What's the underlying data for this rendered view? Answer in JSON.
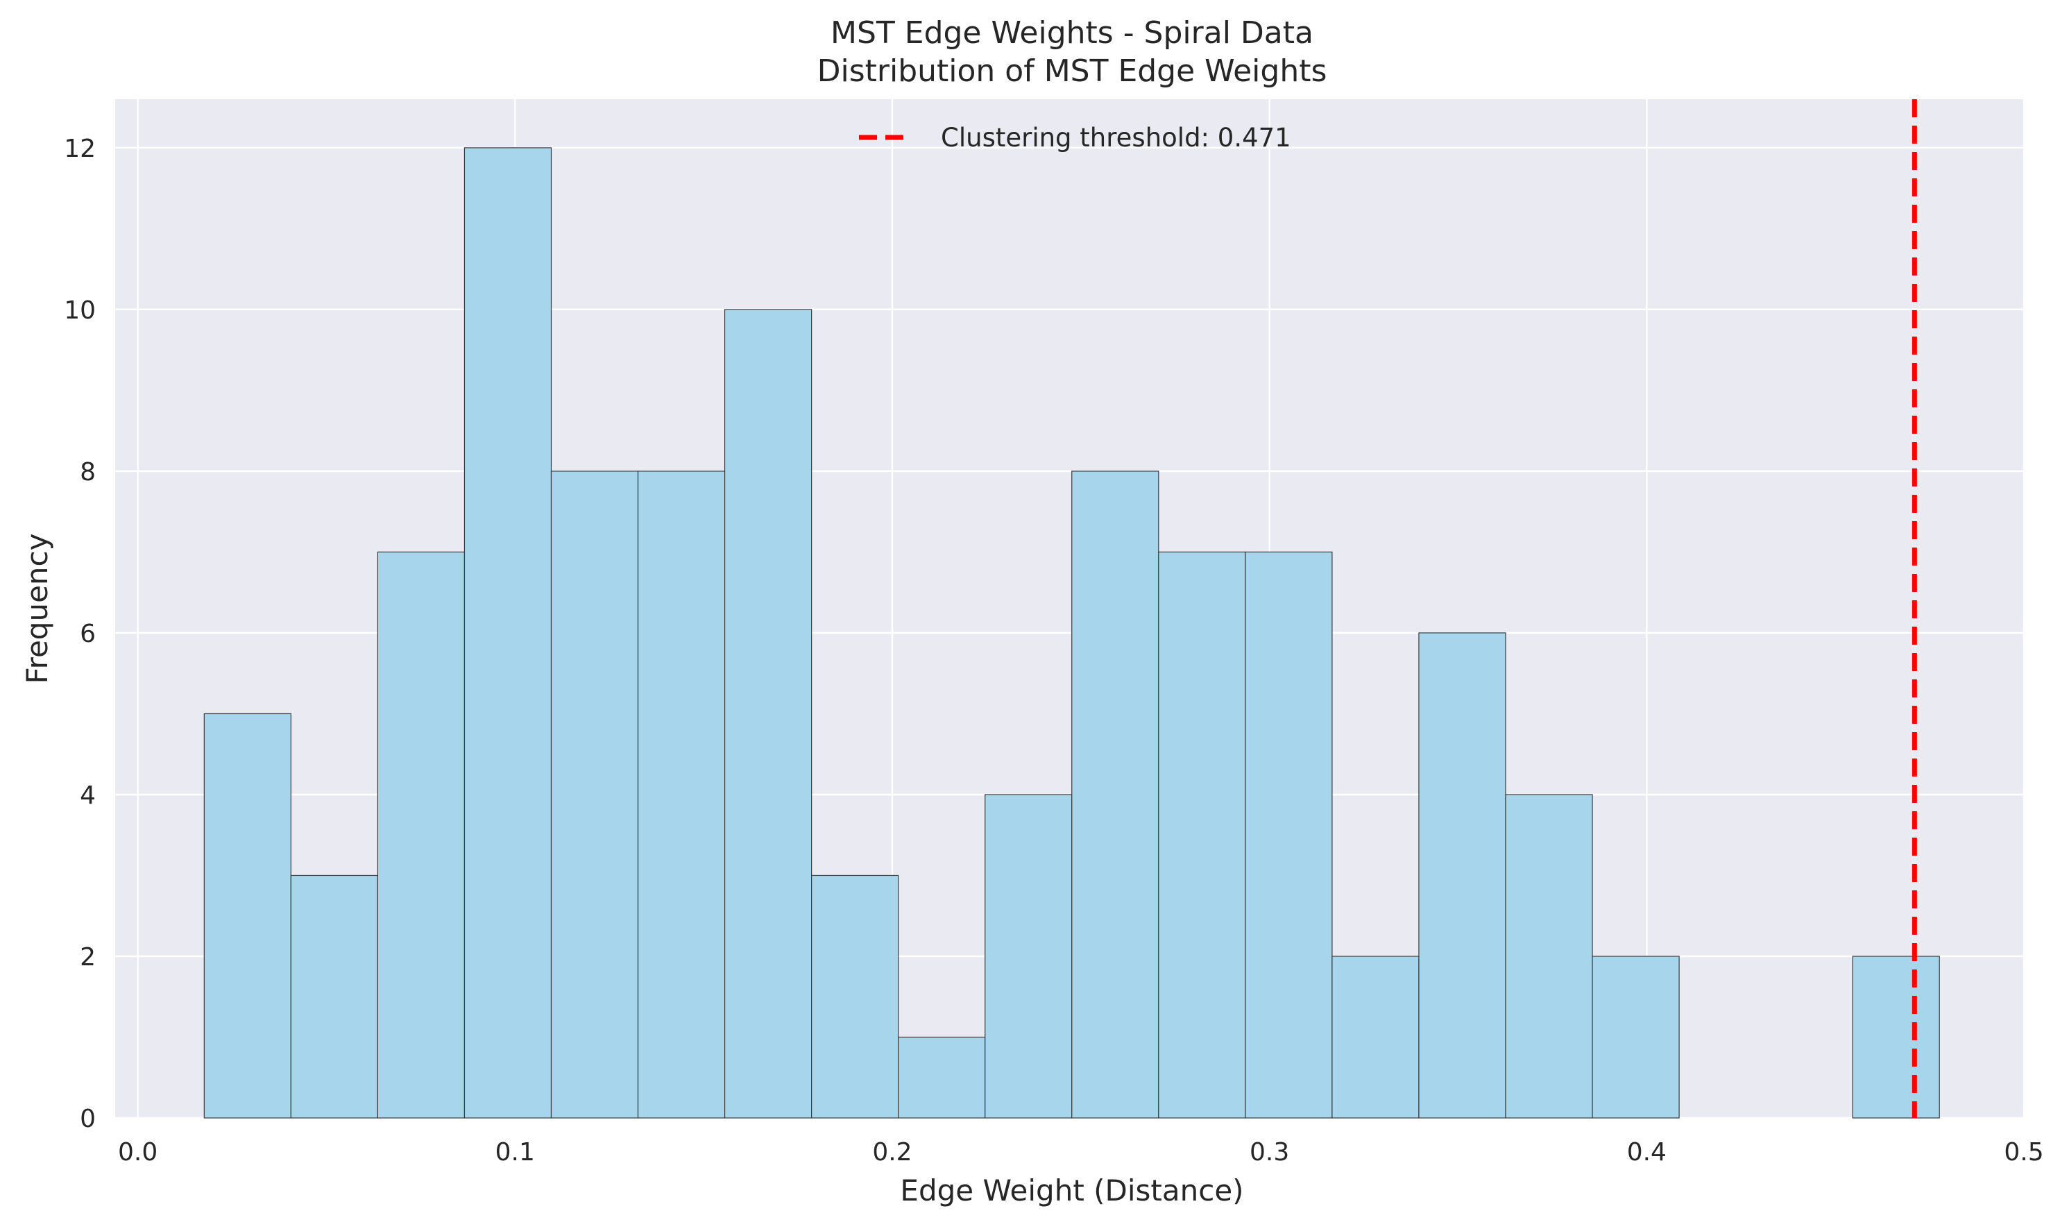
{
  "chart_data": {
    "type": "bar",
    "title": "MST Edge Weights - Spiral Data",
    "subtitle": "Distribution of MST Edge Weights",
    "xlabel": "Edge Weight (Distance)",
    "ylabel": "Frequency",
    "xlim": [
      -0.006,
      0.5
    ],
    "ylim": [
      0,
      12.6
    ],
    "xticks": [
      0.0,
      0.1,
      0.2,
      0.3,
      0.4,
      0.5
    ],
    "xtick_labels": [
      "0.0",
      "0.1",
      "0.2",
      "0.3",
      "0.4",
      "0.5"
    ],
    "yticks": [
      0,
      2,
      4,
      6,
      8,
      10,
      12
    ],
    "ytick_labels": [
      "0",
      "2",
      "4",
      "6",
      "8",
      "10",
      "12"
    ],
    "grid": true,
    "legend_position": "top-center",
    "bins": [
      {
        "x0": 0.0176,
        "x1": 0.0406,
        "count": 5
      },
      {
        "x0": 0.0406,
        "x1": 0.0636,
        "count": 3
      },
      {
        "x0": 0.0636,
        "x1": 0.0866,
        "count": 7
      },
      {
        "x0": 0.0866,
        "x1": 0.1096,
        "count": 12
      },
      {
        "x0": 0.1096,
        "x1": 0.1326,
        "count": 8
      },
      {
        "x0": 0.1326,
        "x1": 0.1556,
        "count": 8
      },
      {
        "x0": 0.1556,
        "x1": 0.1786,
        "count": 10
      },
      {
        "x0": 0.1786,
        "x1": 0.2016,
        "count": 3
      },
      {
        "x0": 0.2016,
        "x1": 0.2246,
        "count": 1
      },
      {
        "x0": 0.2246,
        "x1": 0.2476,
        "count": 4
      },
      {
        "x0": 0.2476,
        "x1": 0.2706,
        "count": 8
      },
      {
        "x0": 0.2706,
        "x1": 0.2936,
        "count": 7
      },
      {
        "x0": 0.2936,
        "x1": 0.3166,
        "count": 7
      },
      {
        "x0": 0.3166,
        "x1": 0.3396,
        "count": 2
      },
      {
        "x0": 0.3396,
        "x1": 0.3626,
        "count": 6
      },
      {
        "x0": 0.3626,
        "x1": 0.3856,
        "count": 4
      },
      {
        "x0": 0.3856,
        "x1": 0.4086,
        "count": 2
      },
      {
        "x0": 0.4086,
        "x1": 0.4316,
        "count": 0
      },
      {
        "x0": 0.4316,
        "x1": 0.4546,
        "count": 0
      },
      {
        "x0": 0.4546,
        "x1": 0.4776,
        "count": 2
      }
    ],
    "threshold": {
      "value": 0.471,
      "label": "Clustering threshold: 0.471",
      "color": "#ff0000",
      "style": "dashed"
    },
    "colors": {
      "bar_fill": "#a6d5ec",
      "bar_edge": "#3a3a3a",
      "plot_background": "#eaeaf2",
      "grid": "#ffffff",
      "page_background": "#ffffff"
    }
  }
}
